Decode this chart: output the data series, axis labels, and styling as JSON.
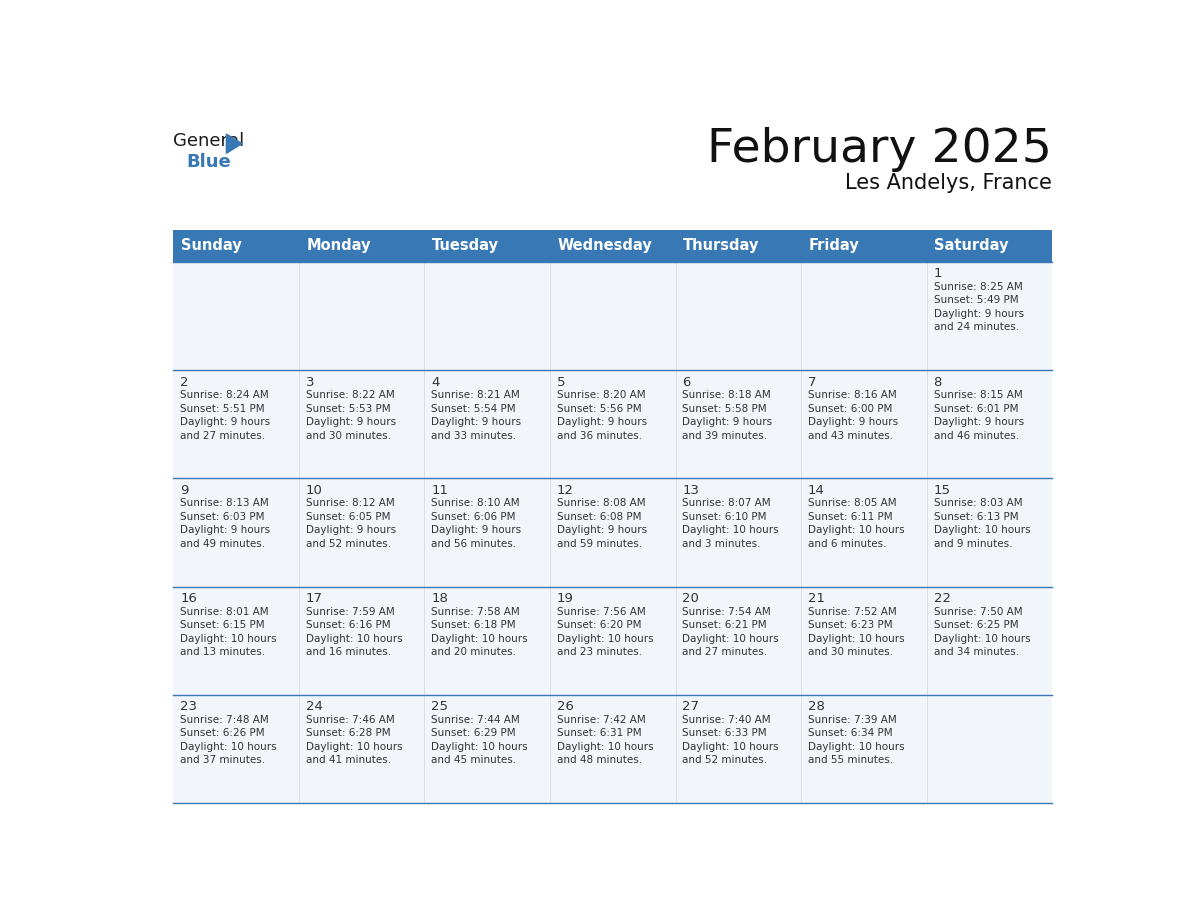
{
  "title": "February 2025",
  "subtitle": "Les Andelys, France",
  "header_bg": "#3878B4",
  "header_text_color": "#FFFFFF",
  "cell_bg": "#F2F6FA",
  "cell_bg_white": "#FFFFFF",
  "border_color": "#3878B4",
  "text_color": "#333333",
  "days_of_week": [
    "Sunday",
    "Monday",
    "Tuesday",
    "Wednesday",
    "Thursday",
    "Friday",
    "Saturday"
  ],
  "calendar_data": [
    [
      null,
      null,
      null,
      null,
      null,
      null,
      {
        "day": "1",
        "sunrise": "8:25 AM",
        "sunset": "5:49 PM",
        "daylight_h": "9 hours",
        "daylight_m": "and 24 minutes."
      }
    ],
    [
      {
        "day": "2",
        "sunrise": "8:24 AM",
        "sunset": "5:51 PM",
        "daylight_h": "9 hours",
        "daylight_m": "and 27 minutes."
      },
      {
        "day": "3",
        "sunrise": "8:22 AM",
        "sunset": "5:53 PM",
        "daylight_h": "9 hours",
        "daylight_m": "and 30 minutes."
      },
      {
        "day": "4",
        "sunrise": "8:21 AM",
        "sunset": "5:54 PM",
        "daylight_h": "9 hours",
        "daylight_m": "and 33 minutes."
      },
      {
        "day": "5",
        "sunrise": "8:20 AM",
        "sunset": "5:56 PM",
        "daylight_h": "9 hours",
        "daylight_m": "and 36 minutes."
      },
      {
        "day": "6",
        "sunrise": "8:18 AM",
        "sunset": "5:58 PM",
        "daylight_h": "9 hours",
        "daylight_m": "and 39 minutes."
      },
      {
        "day": "7",
        "sunrise": "8:16 AM",
        "sunset": "6:00 PM",
        "daylight_h": "9 hours",
        "daylight_m": "and 43 minutes."
      },
      {
        "day": "8",
        "sunrise": "8:15 AM",
        "sunset": "6:01 PM",
        "daylight_h": "9 hours",
        "daylight_m": "and 46 minutes."
      }
    ],
    [
      {
        "day": "9",
        "sunrise": "8:13 AM",
        "sunset": "6:03 PM",
        "daylight_h": "9 hours",
        "daylight_m": "and 49 minutes."
      },
      {
        "day": "10",
        "sunrise": "8:12 AM",
        "sunset": "6:05 PM",
        "daylight_h": "9 hours",
        "daylight_m": "and 52 minutes."
      },
      {
        "day": "11",
        "sunrise": "8:10 AM",
        "sunset": "6:06 PM",
        "daylight_h": "9 hours",
        "daylight_m": "and 56 minutes."
      },
      {
        "day": "12",
        "sunrise": "8:08 AM",
        "sunset": "6:08 PM",
        "daylight_h": "9 hours",
        "daylight_m": "and 59 minutes."
      },
      {
        "day": "13",
        "sunrise": "8:07 AM",
        "sunset": "6:10 PM",
        "daylight_h": "10 hours",
        "daylight_m": "and 3 minutes."
      },
      {
        "day": "14",
        "sunrise": "8:05 AM",
        "sunset": "6:11 PM",
        "daylight_h": "10 hours",
        "daylight_m": "and 6 minutes."
      },
      {
        "day": "15",
        "sunrise": "8:03 AM",
        "sunset": "6:13 PM",
        "daylight_h": "10 hours",
        "daylight_m": "and 9 minutes."
      }
    ],
    [
      {
        "day": "16",
        "sunrise": "8:01 AM",
        "sunset": "6:15 PM",
        "daylight_h": "10 hours",
        "daylight_m": "and 13 minutes."
      },
      {
        "day": "17",
        "sunrise": "7:59 AM",
        "sunset": "6:16 PM",
        "daylight_h": "10 hours",
        "daylight_m": "and 16 minutes."
      },
      {
        "day": "18",
        "sunrise": "7:58 AM",
        "sunset": "6:18 PM",
        "daylight_h": "10 hours",
        "daylight_m": "and 20 minutes."
      },
      {
        "day": "19",
        "sunrise": "7:56 AM",
        "sunset": "6:20 PM",
        "daylight_h": "10 hours",
        "daylight_m": "and 23 minutes."
      },
      {
        "day": "20",
        "sunrise": "7:54 AM",
        "sunset": "6:21 PM",
        "daylight_h": "10 hours",
        "daylight_m": "and 27 minutes."
      },
      {
        "day": "21",
        "sunrise": "7:52 AM",
        "sunset": "6:23 PM",
        "daylight_h": "10 hours",
        "daylight_m": "and 30 minutes."
      },
      {
        "day": "22",
        "sunrise": "7:50 AM",
        "sunset": "6:25 PM",
        "daylight_h": "10 hours",
        "daylight_m": "and 34 minutes."
      }
    ],
    [
      {
        "day": "23",
        "sunrise": "7:48 AM",
        "sunset": "6:26 PM",
        "daylight_h": "10 hours",
        "daylight_m": "and 37 minutes."
      },
      {
        "day": "24",
        "sunrise": "7:46 AM",
        "sunset": "6:28 PM",
        "daylight_h": "10 hours",
        "daylight_m": "and 41 minutes."
      },
      {
        "day": "25",
        "sunrise": "7:44 AM",
        "sunset": "6:29 PM",
        "daylight_h": "10 hours",
        "daylight_m": "and 45 minutes."
      },
      {
        "day": "26",
        "sunrise": "7:42 AM",
        "sunset": "6:31 PM",
        "daylight_h": "10 hours",
        "daylight_m": "and 48 minutes."
      },
      {
        "day": "27",
        "sunrise": "7:40 AM",
        "sunset": "6:33 PM",
        "daylight_h": "10 hours",
        "daylight_m": "and 52 minutes."
      },
      {
        "day": "28",
        "sunrise": "7:39 AM",
        "sunset": "6:34 PM",
        "daylight_h": "10 hours",
        "daylight_m": "and 55 minutes."
      },
      null
    ]
  ]
}
